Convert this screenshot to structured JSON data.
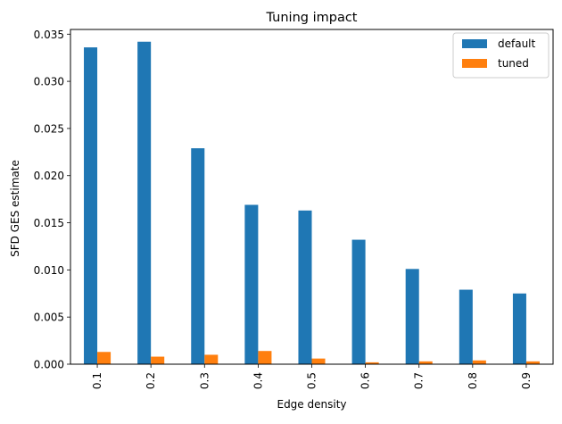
{
  "chart_data": {
    "type": "bar",
    "title": "Tuning impact",
    "xlabel": "Edge density",
    "ylabel": "SFD GES estimate",
    "categories": [
      "0.1",
      "0.2",
      "0.3",
      "0.4",
      "0.5",
      "0.6",
      "0.7",
      "0.8",
      "0.9"
    ],
    "series": [
      {
        "name": "default",
        "color": "#1f77b4",
        "values": [
          0.0336,
          0.0342,
          0.0229,
          0.0169,
          0.0163,
          0.0132,
          0.0101,
          0.0079,
          0.0075
        ]
      },
      {
        "name": "tuned",
        "color": "#ff7f0e",
        "values": [
          0.0013,
          0.0008,
          0.001,
          0.0014,
          0.0006,
          0.0002,
          0.0003,
          0.0004,
          0.0003
        ]
      }
    ],
    "ylim": [
      0,
      0.0355
    ],
    "yticks": [
      "0.000",
      "0.005",
      "0.010",
      "0.015",
      "0.020",
      "0.025",
      "0.030",
      "0.035"
    ],
    "ytick_values": [
      0,
      0.005,
      0.01,
      0.015,
      0.02,
      0.025,
      0.03,
      0.035
    ],
    "legend": "top-right",
    "grid": false
  }
}
